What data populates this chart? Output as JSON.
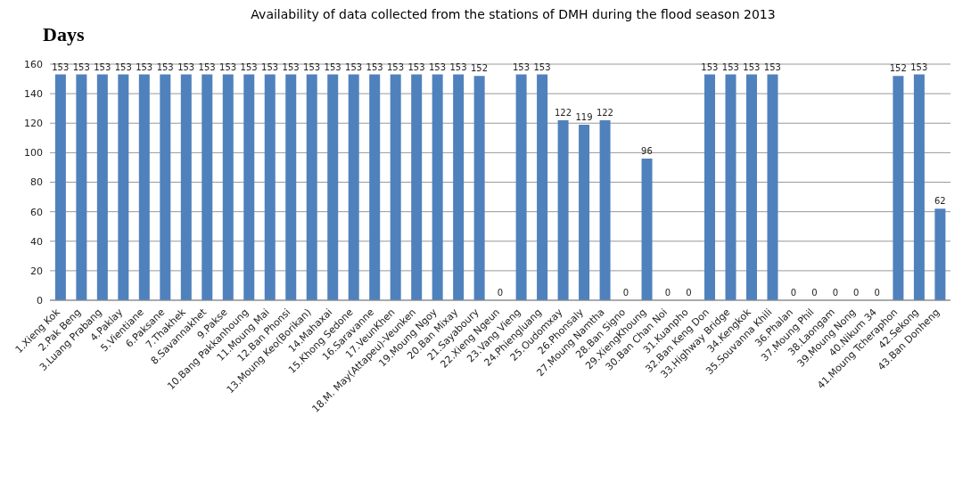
{
  "chart_data": {
    "type": "bar",
    "title": "Availability of data collected from the stations of DMH during the flood season 2013",
    "ylabel": "Days",
    "categories": [
      "1.Xieng Kok",
      "2.Pak Beng",
      "3.Luang Prabang",
      "4.Paklay",
      "5.Vientiane",
      "6.Paksane",
      "7.Thakhek",
      "8.Savannakhet",
      "9.Pakse",
      "10.Bang Pakkanhoung",
      "11.Moung Mai",
      "12.Ban Phonsi",
      "13.Moung Keo(Borikan)",
      "14.Mahaxai",
      "15.Khong Sedone",
      "16.Saravanne",
      "17.VeunKhen",
      "18.M. May(Attapeu)-Veunken",
      "19.Moung Ngoy",
      "20.Ban Mixay",
      "21.Sayaboury",
      "22.Xieng Ngeun",
      "23.Vang Vieng",
      "24.Phiengluang",
      "25.Oudomxay",
      "26.Phonsaly",
      "27.Moung Namtha",
      "28.Ban Signo",
      "29.XiengKhoung",
      "30.Ban Chan Noi",
      "31.Kuanpho",
      "32.Ban Keng Don",
      "33.Highway Bridge",
      "34.Kengkok",
      "35.Souvanna Khili",
      "36.Phalan",
      "37.Moung Phil",
      "38.Laongam",
      "39.Moung Nong",
      "40.Nikum 34",
      "41.Moung Tcheraphon",
      "42.Sekong",
      "43.Ban Donheng"
    ],
    "values": [
      153,
      153,
      153,
      153,
      153,
      153,
      153,
      153,
      153,
      153,
      153,
      153,
      153,
      153,
      153,
      153,
      153,
      153,
      153,
      153,
      152,
      0,
      153,
      153,
      122,
      119,
      122,
      0,
      96,
      0,
      0,
      153,
      153,
      153,
      153,
      0,
      0,
      0,
      0,
      0,
      152,
      153,
      62
    ],
    "color": "#4f81bd",
    "ylim": [
      0,
      160
    ],
    "yticks": [
      0,
      20,
      40,
      60,
      80,
      100,
      120,
      140,
      160
    ],
    "grid": "y",
    "data_labels": true
  }
}
